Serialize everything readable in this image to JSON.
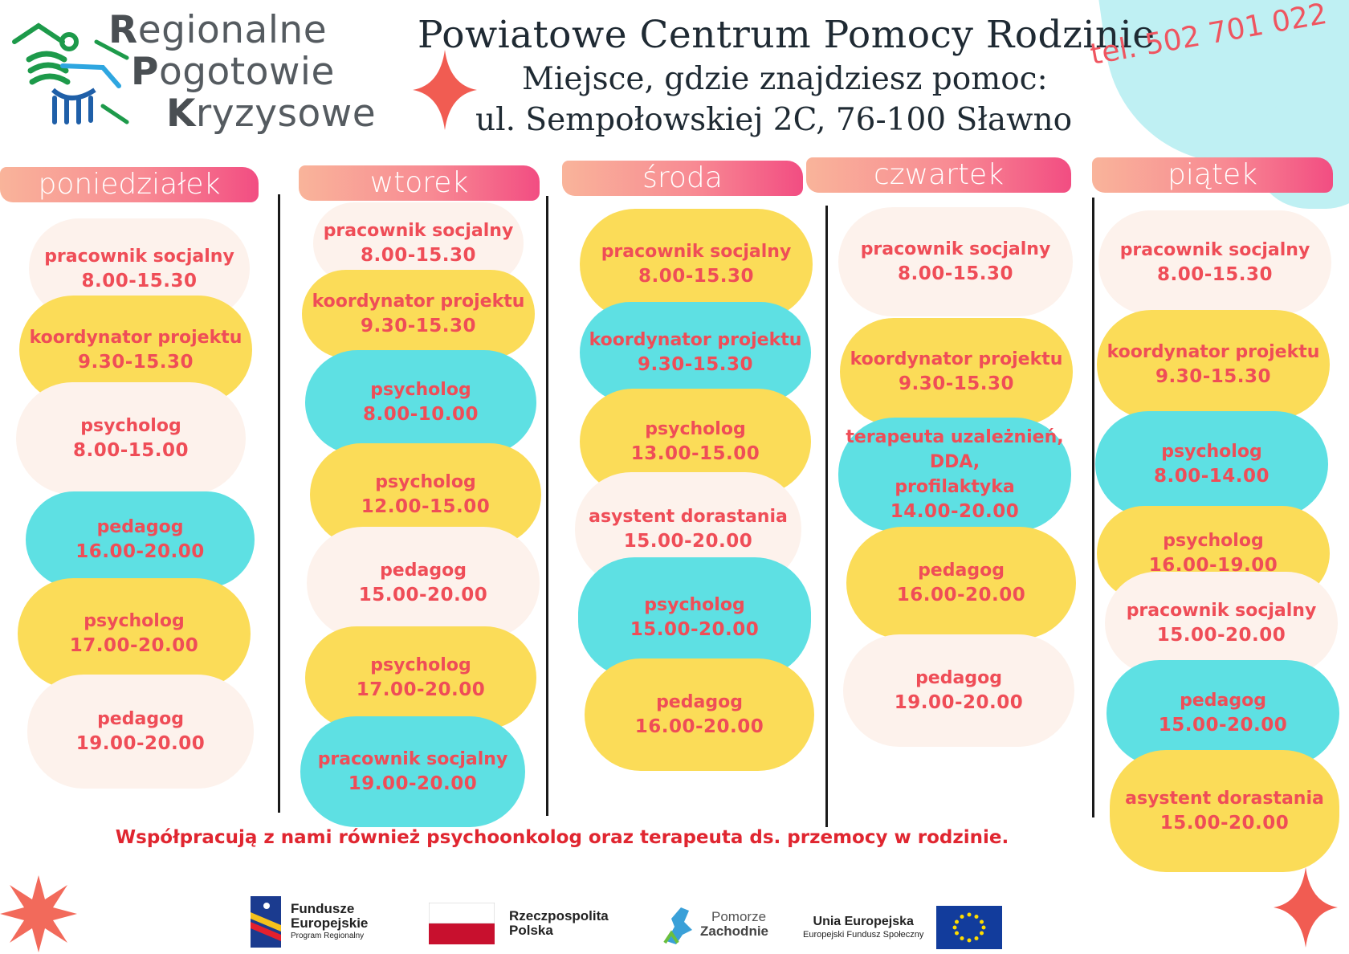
{
  "header": {
    "logo": {
      "line1_cap": "R",
      "line1_rest": "egionalne",
      "line2_cap": "P",
      "line2_rest": "ogotowie",
      "line3_cap": "K",
      "line3_rest": "ryzysowe"
    },
    "title": "Powiatowe Centrum Pomocy Rodzinie",
    "subtitle": "Miejsce, gdzie znajdziesz pomoc:",
    "address": "ul. Sempołowskiej 2C, 76-100 Sławno",
    "phone": "tel. 502 701 022"
  },
  "colors": {
    "cream": "#fdf2ec",
    "yellow": "#fbdc58",
    "cyan": "#5ee0e3",
    "text": "#ef4d57",
    "accent": "#ef5560"
  },
  "days": [
    {
      "name": "poniedziałek",
      "entries": [
        {
          "role": "pracownik socjalny",
          "time": "8.00-15.30",
          "color": "cream"
        },
        {
          "role": "koordynator projektu",
          "time": "9.30-15.30",
          "color": "yellow"
        },
        {
          "role": "psycholog",
          "time": "8.00-15.00",
          "color": "cream"
        },
        {
          "role": "pedagog",
          "time": "16.00-20.00",
          "color": "cyan"
        },
        {
          "role": "psycholog",
          "time": "17.00-20.00",
          "color": "yellow"
        },
        {
          "role": "pedagog",
          "time": "19.00-20.00",
          "color": "cream"
        }
      ]
    },
    {
      "name": "wtorek",
      "entries": [
        {
          "role": "pracownik socjalny",
          "time": "8.00-15.30",
          "color": "cream"
        },
        {
          "role": "koordynator projektu",
          "time": "9.30-15.30",
          "color": "yellow"
        },
        {
          "role": "psycholog",
          "time": "8.00-10.00",
          "color": "cyan"
        },
        {
          "role": "psycholog",
          "time": "12.00-15.00",
          "color": "yellow"
        },
        {
          "role": "pedagog",
          "time": "15.00-20.00",
          "color": "cream"
        },
        {
          "role": "psycholog",
          "time": "17.00-20.00",
          "color": "yellow"
        },
        {
          "role": "pracownik socjalny",
          "time": "19.00-20.00",
          "color": "cyan"
        }
      ]
    },
    {
      "name": "środa",
      "entries": [
        {
          "role": "pracownik socjalny",
          "time": "8.00-15.30",
          "color": "yellow"
        },
        {
          "role": "koordynator projektu",
          "time": "9.30-15.30",
          "color": "cyan"
        },
        {
          "role": "psycholog",
          "time": "13.00-15.00",
          "color": "yellow"
        },
        {
          "role": "asystent dorastania",
          "time": "15.00-20.00",
          "color": "cream"
        },
        {
          "role": "psycholog",
          "time": "15.00-20.00",
          "color": "cyan"
        },
        {
          "role": "pedagog",
          "time": "16.00-20.00",
          "color": "yellow"
        }
      ]
    },
    {
      "name": "czwartek",
      "entries": [
        {
          "role": "pracownik socjalny",
          "time": "8.00-15.30",
          "color": "cream"
        },
        {
          "role": "koordynator projektu",
          "time": "9.30-15.30",
          "color": "yellow"
        },
        {
          "role": "terapeuta uzależnień, DDA, profilaktyka",
          "role_lines": [
            "terapeuta uzależnień,",
            "DDA,",
            "profilaktyka"
          ],
          "time": "14.00-20.00",
          "color": "cyan"
        },
        {
          "role": "pedagog",
          "time": "16.00-20.00",
          "color": "yellow"
        },
        {
          "role": "pedagog",
          "time": "19.00-20.00",
          "color": "cream"
        }
      ]
    },
    {
      "name": "piątek",
      "entries": [
        {
          "role": "pracownik socjalny",
          "time": "8.00-15.30",
          "color": "cream"
        },
        {
          "role": "koordynator projektu",
          "time": "9.30-15.30",
          "color": "yellow"
        },
        {
          "role": "psycholog",
          "time": "8.00-14.00",
          "color": "cyan"
        },
        {
          "role": "psycholog",
          "time": "16.00-19.00",
          "color": "yellow"
        },
        {
          "role": "pracownik socjalny",
          "time": "15.00-20.00",
          "color": "cream"
        },
        {
          "role": "pedagog",
          "time": "15.00-20.00",
          "color": "cyan"
        },
        {
          "role": "asystent dorastania",
          "time": "15.00-20.00",
          "color": "yellow"
        }
      ]
    }
  ],
  "cooperation_note": "Współpracują z nami również psychoonkolog oraz terapeuta ds. przemocy w rodzinie.",
  "footer": {
    "fe": {
      "line1": "Fundusze",
      "line2": "Europejskie",
      "line3": "Program Regionalny"
    },
    "rp": {
      "line1": "Rzeczpospolita",
      "line2": "Polska"
    },
    "pz": {
      "line1": "Pomorze",
      "line2": "Zachodnie"
    },
    "ue": {
      "line1": "Unia Europejska",
      "line2": "Europejski Fundusz Społeczny"
    }
  }
}
